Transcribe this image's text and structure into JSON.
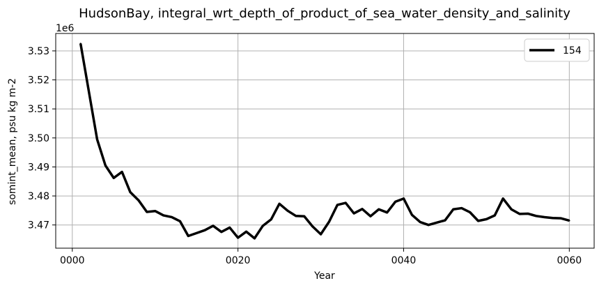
{
  "chart_data": {
    "type": "line",
    "title": "HudsonBay, integral_wrt_depth_of_product_of_sea_water_density_and_salinity",
    "xlabel": "Year",
    "ylabel": "somint_mean, psu kg m-2",
    "y_offset_label": "1e6",
    "y_scale": 1000000,
    "xlim": [
      -2,
      63
    ],
    "ylim": [
      3.462,
      3.536
    ],
    "x_ticks": [
      0,
      20,
      40,
      60
    ],
    "x_tick_labels": [
      "0000",
      "0020",
      "0040",
      "0060"
    ],
    "y_ticks": [
      3.47,
      3.48,
      3.49,
      3.5,
      3.51,
      3.52,
      3.53
    ],
    "y_tick_labels": [
      "3.47",
      "3.48",
      "3.49",
      "3.50",
      "3.51",
      "3.52",
      "3.53"
    ],
    "grid": true,
    "legend_position": "top-right",
    "series": [
      {
        "name": "154",
        "color": "#000000",
        "x": [
          1,
          2,
          3,
          4,
          5,
          6,
          7,
          8,
          9,
          10,
          11,
          12,
          13,
          14,
          15,
          16,
          17,
          18,
          19,
          20,
          21,
          22,
          23,
          24,
          25,
          26,
          27,
          28,
          29,
          30,
          31,
          32,
          33,
          34,
          35,
          36,
          37,
          38,
          39,
          40,
          41,
          42,
          43,
          44,
          45,
          46,
          47,
          48,
          49,
          50,
          51,
          52,
          53,
          54,
          55,
          56,
          57,
          58,
          59,
          60
        ],
        "values": [
          3.5325,
          3.516,
          3.4995,
          3.4905,
          3.4862,
          3.4883,
          3.4813,
          3.4785,
          3.4745,
          3.4748,
          3.4733,
          3.4727,
          3.4713,
          3.4662,
          3.4672,
          3.4682,
          3.4697,
          3.4676,
          3.4691,
          3.4656,
          3.4677,
          3.4654,
          3.4697,
          3.4719,
          3.4773,
          3.4749,
          3.4731,
          3.473,
          3.4695,
          3.4668,
          3.4711,
          3.4769,
          3.4776,
          3.474,
          3.4755,
          3.473,
          3.4754,
          3.4743,
          3.478,
          3.4791,
          3.4735,
          3.471,
          3.47,
          3.4708,
          3.4716,
          3.4754,
          3.4758,
          3.4744,
          3.4714,
          3.472,
          3.4733,
          3.4791,
          3.4754,
          3.4738,
          3.4739,
          3.4731,
          3.4727,
          3.4724,
          3.4723,
          3.4715
        ]
      }
    ]
  }
}
